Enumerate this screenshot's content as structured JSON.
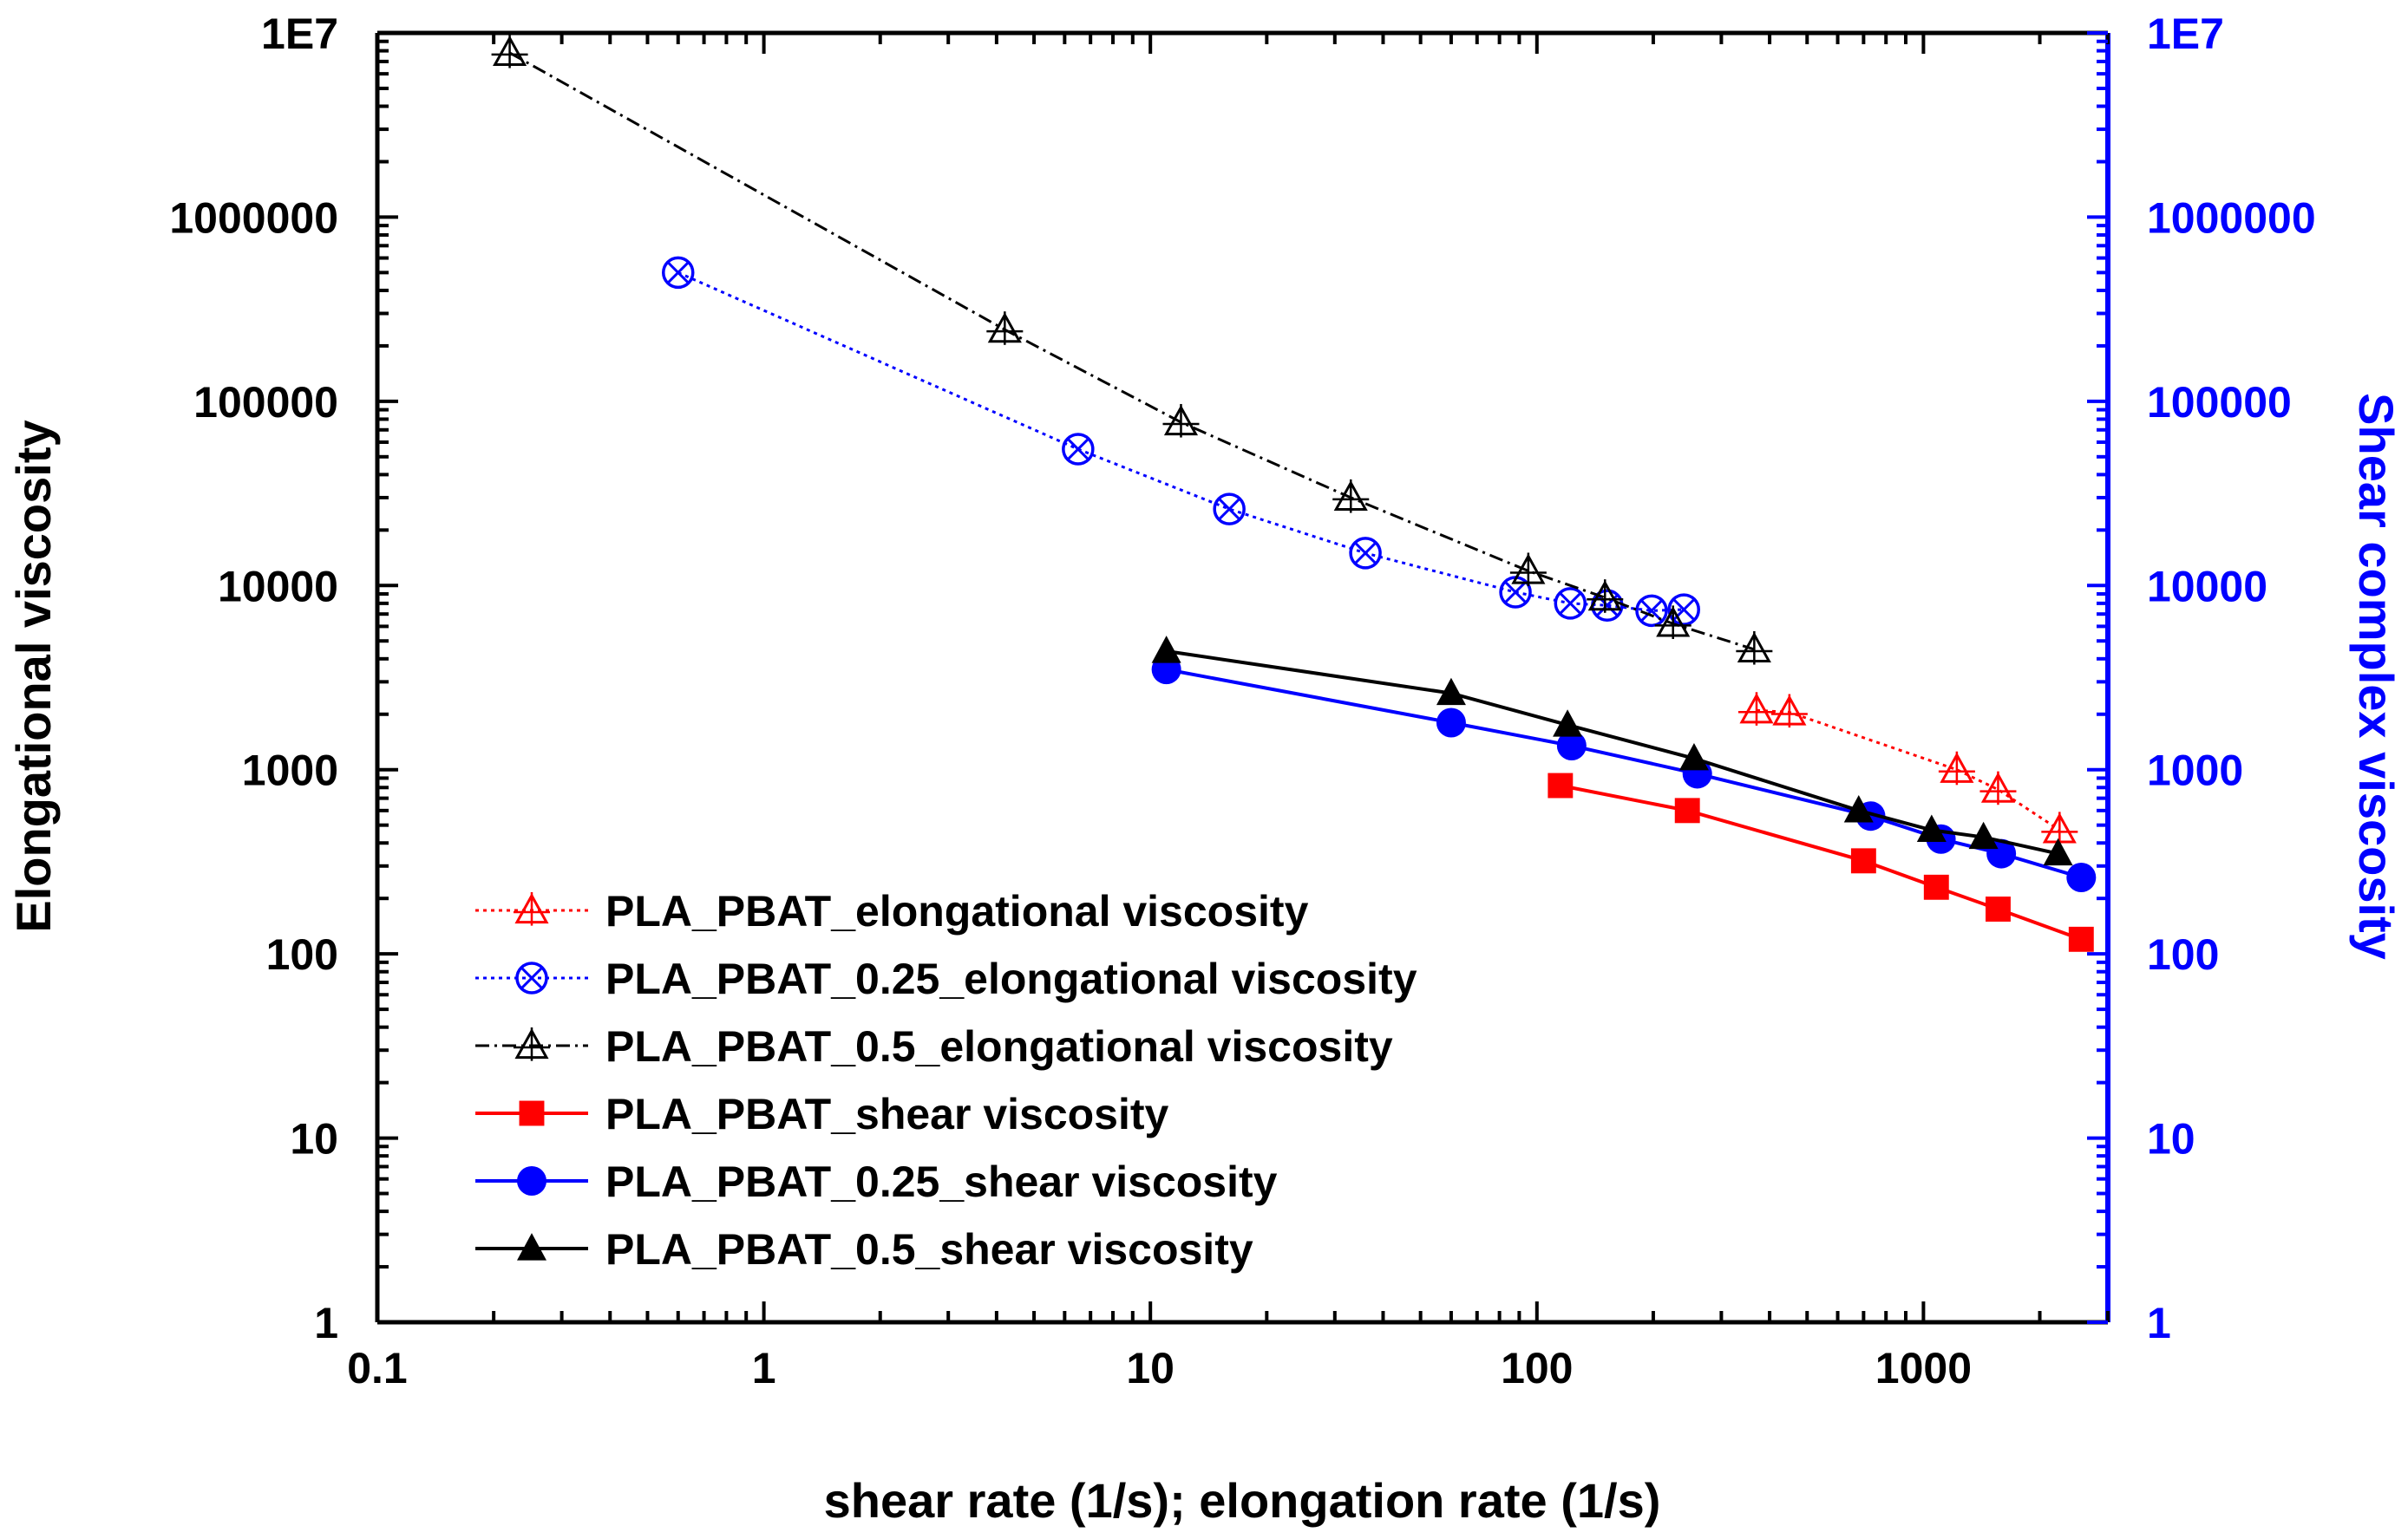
{
  "chart_data": {
    "type": "scatter",
    "title": "",
    "xlabel": "shear rate (1/s); elongation rate (1/s)",
    "ylabel": "Elongational viscosity",
    "y2label": "Shear complex viscosity",
    "xscale": "log",
    "yscale": "log",
    "xlim": [
      0.1,
      3000
    ],
    "ylim": [
      1,
      10000000
    ],
    "grid": false,
    "legend_position": "lower-left",
    "x_tick_labels": [
      "0.1",
      "1",
      "10",
      "100",
      "1000"
    ],
    "y_tick_labels": [
      "1",
      "10",
      "100",
      "1000",
      "10000",
      "100000",
      "1000000",
      "1E7"
    ],
    "y2_tick_labels": [
      "1",
      "10",
      "100",
      "1000",
      "10000",
      "100000",
      "1000000",
      "1E7"
    ],
    "colors": {
      "left_axis": "#000000",
      "right_axis": "#0000ff"
    },
    "series": [
      {
        "name": "PLA_PBAT_elongational viscosity",
        "color": "#ff0000",
        "marker": "open-triangle",
        "line": "dotted",
        "x": [
          370,
          450,
          1220,
          1560,
          2250
        ],
        "y": [
          2100,
          2050,
          1000,
          780,
          470
        ]
      },
      {
        "name": "PLA_PBAT_0.25_elongational viscosity",
        "color": "#0000ff",
        "marker": "circle-x",
        "line": "dotted",
        "x": [
          0.6,
          6.5,
          16,
          36,
          88,
          122,
          152,
          198,
          240
        ],
        "y": [
          500000,
          55000,
          26000,
          15000,
          9200,
          8000,
          7800,
          7300,
          7400
        ]
      },
      {
        "name": "PLA_PBAT_0.5_elongational viscosity",
        "color": "#000000",
        "marker": "open-triangle",
        "line": "dashdot",
        "x": [
          0.22,
          4.2,
          12,
          33,
          95,
          150,
          225,
          365
        ],
        "y": [
          7800000,
          245000,
          77000,
          30000,
          12000,
          8600,
          6200,
          4500
        ]
      },
      {
        "name": "PLA_PBAT_shear viscosity",
        "color": "#ff0000",
        "marker": "filled-square",
        "line": "solid",
        "x": [
          115,
          245,
          700,
          1080,
          1560,
          2560
        ],
        "y": [
          820,
          600,
          320,
          230,
          175,
          120
        ]
      },
      {
        "name": "PLA_PBAT_0.25_shear viscosity",
        "color": "#0000ff",
        "marker": "filled-circle",
        "line": "solid",
        "x": [
          11,
          60,
          123,
          260,
          730,
          1110,
          1590,
          2560
        ],
        "y": [
          3500,
          1800,
          1350,
          950,
          560,
          420,
          350,
          260
        ]
      },
      {
        "name": "PLA_PBAT_0.5_shear viscosity",
        "color": "#000000",
        "marker": "filled-triangle",
        "line": "solid",
        "x": [
          11,
          60,
          120,
          255,
          680,
          1050,
          1430,
          2230
        ],
        "y": [
          4400,
          2600,
          1750,
          1150,
          600,
          470,
          430,
          350
        ]
      }
    ]
  }
}
